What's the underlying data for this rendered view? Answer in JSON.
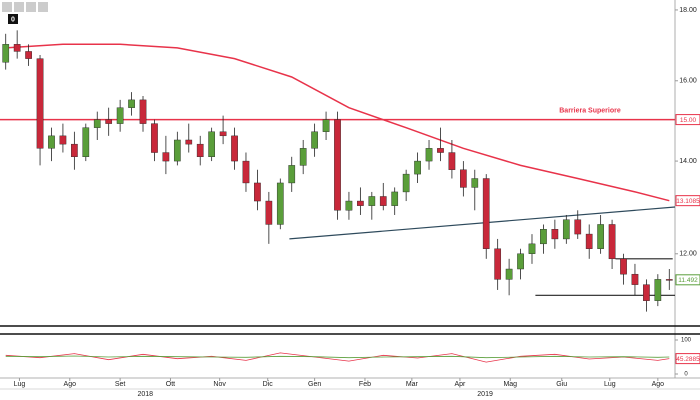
{
  "chart_data": {
    "type": "candlestick",
    "toolbar_badge": "0",
    "log_scale": true,
    "ylim": [
      10.66,
      18.3
    ],
    "yticks": [
      {
        "value": 12,
        "label": "12.00"
      },
      {
        "value": 14,
        "label": "14.00"
      },
      {
        "value": 16,
        "label": "16.00"
      },
      {
        "value": 18,
        "label": "18.00"
      }
    ],
    "xlim": [
      -0.5,
      58.5
    ],
    "xticks": [
      {
        "value": 1.2,
        "label": "Lug"
      },
      {
        "value": 5.6,
        "label": "Ago"
      },
      {
        "value": 10,
        "label": "Set"
      },
      {
        "value": 14.4,
        "label": "Ott"
      },
      {
        "value": 18.7,
        "label": "Nov"
      },
      {
        "value": 22.9,
        "label": "Dic"
      },
      {
        "value": 27,
        "label": "Gen"
      },
      {
        "value": 31.4,
        "label": "Feb"
      },
      {
        "value": 35.5,
        "label": "Mar"
      },
      {
        "value": 39.7,
        "label": "Apr"
      },
      {
        "value": 44.1,
        "label": "Mag"
      },
      {
        "value": 48.6,
        "label": "Giu"
      },
      {
        "value": 52.8,
        "label": "Lug"
      },
      {
        "value": 57,
        "label": "Ago"
      }
    ],
    "year_labels": [
      {
        "value": 12.2,
        "label": "2018"
      },
      {
        "value": 41.9,
        "label": "2019"
      }
    ],
    "up_color": "#5a9e3a",
    "down_color": "#c8283a",
    "candles": {
      "open": [
        16.5,
        17.0,
        16.8,
        16.6,
        14.3,
        14.6,
        14.4,
        14.1,
        14.8,
        15.0,
        14.9,
        15.3,
        15.5,
        14.9,
        14.2,
        14.0,
        14.5,
        14.4,
        14.1,
        14.7,
        14.6,
        14.0,
        13.5,
        13.1,
        12.6,
        13.5,
        13.9,
        14.3,
        14.7,
        15.0,
        12.9,
        13.1,
        13.0,
        13.2,
        13.0,
        13.3,
        13.7,
        14.0,
        14.3,
        14.2,
        13.8,
        13.4,
        13.6,
        12.1,
        11.5,
        11.7,
        12.0,
        12.2,
        12.5,
        12.3,
        12.7,
        12.4,
        12.1,
        12.6,
        11.9,
        11.6,
        11.4,
        11.1,
        11.5
      ],
      "high": [
        17.3,
        17.4,
        17.0,
        16.7,
        14.8,
        14.9,
        14.7,
        14.9,
        15.2,
        15.3,
        15.5,
        15.7,
        15.6,
        15.0,
        14.6,
        14.7,
        14.9,
        14.6,
        14.8,
        15.1,
        14.8,
        14.2,
        13.8,
        13.3,
        13.6,
        14.1,
        14.5,
        14.9,
        15.2,
        15.2,
        13.3,
        13.4,
        13.3,
        13.5,
        13.4,
        13.8,
        14.2,
        14.5,
        14.8,
        14.5,
        14.0,
        13.8,
        13.7,
        12.3,
        11.9,
        12.1,
        12.4,
        12.6,
        12.7,
        12.8,
        12.9,
        12.6,
        12.8,
        12.7,
        12.0,
        11.8,
        11.5,
        11.6,
        11.7
      ],
      "low": [
        16.3,
        16.6,
        16.4,
        13.9,
        14.0,
        14.2,
        13.8,
        14.0,
        14.5,
        14.6,
        14.7,
        15.1,
        14.7,
        14.0,
        13.7,
        13.9,
        14.2,
        13.9,
        14.0,
        14.4,
        13.8,
        13.3,
        12.9,
        12.2,
        12.5,
        13.3,
        13.7,
        14.1,
        14.5,
        12.7,
        12.7,
        12.8,
        12.7,
        12.9,
        12.8,
        13.1,
        13.5,
        13.8,
        14.0,
        13.6,
        13.2,
        12.9,
        11.9,
        11.3,
        11.2,
        11.5,
        11.8,
        12.0,
        12.1,
        12.2,
        12.3,
        11.9,
        12.0,
        11.7,
        11.4,
        11.2,
        10.9,
        11.0,
        11.3
      ],
      "close": [
        17.0,
        16.8,
        16.6,
        14.3,
        14.6,
        14.4,
        14.1,
        14.8,
        15.0,
        14.9,
        15.3,
        15.5,
        14.9,
        14.2,
        14.0,
        14.5,
        14.4,
        14.1,
        14.7,
        14.6,
        14.0,
        13.5,
        13.1,
        12.6,
        13.5,
        13.9,
        14.3,
        14.7,
        15.0,
        12.9,
        13.1,
        13.0,
        13.2,
        13.0,
        13.3,
        13.7,
        14.0,
        14.3,
        14.2,
        13.8,
        13.4,
        13.6,
        12.1,
        11.5,
        11.7,
        12.0,
        12.2,
        12.5,
        12.3,
        12.7,
        12.4,
        12.1,
        12.6,
        11.9,
        11.6,
        11.4,
        11.1,
        11.5,
        11.492
      ]
    },
    "moving_average": {
      "color": "#e8334a",
      "x": [
        0,
        5,
        10,
        15,
        20,
        25,
        30,
        35,
        40,
        45,
        50,
        55,
        58
      ],
      "values": [
        16.9,
        17.0,
        17.0,
        16.9,
        16.6,
        16.1,
        15.3,
        14.8,
        14.3,
        13.9,
        13.6,
        13.3,
        13.1085
      ]
    },
    "barrier": {
      "name": "Barriera Superiore",
      "level": {
        "value": 15,
        "label": "15.00"
      },
      "color": "#e8334a"
    },
    "trendlines": [
      {
        "color": "#2e4a5c",
        "x": [
          24.8,
          58.5
        ],
        "values": [
          12.3,
          12.97
        ]
      },
      {
        "color": "#222222",
        "x": [
          46.3,
          58.5
        ],
        "values": [
          11.2,
          11.2
        ]
      },
      {
        "color": "#222222",
        "x": [
          53.3,
          58.3
        ],
        "values": [
          11.9,
          11.9
        ]
      }
    ],
    "indicator": {
      "ylim": [
        0,
        100
      ],
      "yticks": [
        0,
        100
      ],
      "series": [
        {
          "color": "#e8334a",
          "x": [
            0,
            3,
            6,
            9,
            12,
            15,
            18,
            21,
            24,
            27,
            30,
            33,
            36,
            39,
            42,
            45,
            48,
            51,
            54,
            57,
            58
          ],
          "values": [
            55,
            48,
            60,
            42,
            58,
            45,
            52,
            40,
            62,
            50,
            38,
            55,
            47,
            60,
            35,
            52,
            58,
            44,
            50,
            40,
            45.2885
          ]
        },
        {
          "color": "#5a9e3a",
          "x": [
            0,
            3,
            6,
            9,
            12,
            15,
            18,
            21,
            24,
            27,
            30,
            33,
            36,
            39,
            42,
            45,
            48,
            51,
            54,
            57,
            58
          ],
          "values": [
            52,
            51,
            53,
            50,
            52,
            51,
            50,
            49,
            52,
            51,
            48,
            50,
            51,
            52,
            48,
            50,
            52,
            50,
            51,
            49,
            50
          ]
        }
      ]
    }
  }
}
